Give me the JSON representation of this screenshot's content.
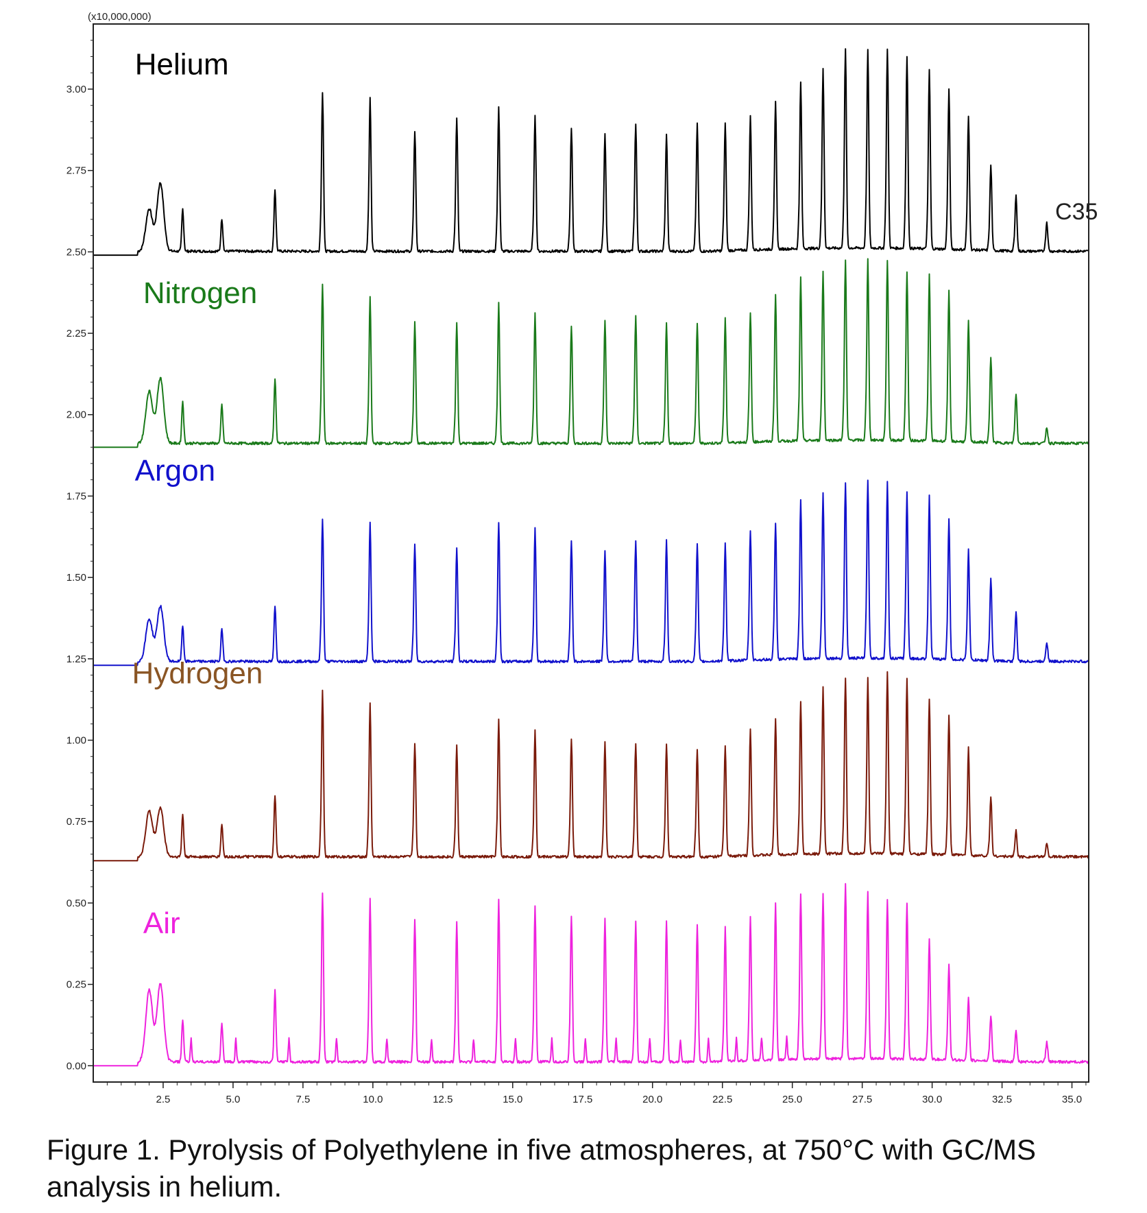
{
  "chart_data": {
    "type": "line",
    "title": "",
    "axis_multiplier_label": "(x10,000,000)",
    "xlabel": "",
    "ylabel": "",
    "xlim": [
      0,
      35.6
    ],
    "ylim": [
      -0.05,
      3.2
    ],
    "x_ticks": [
      "2.5",
      "5.0",
      "7.5",
      "10.0",
      "12.5",
      "15.0",
      "17.5",
      "20.0",
      "22.5",
      "25.0",
      "27.5",
      "30.0",
      "32.5",
      "35.0"
    ],
    "y_ticks": [
      "0.00",
      "0.25",
      "0.50",
      "0.75",
      "1.00",
      "1.25",
      "1.50",
      "1.75",
      "2.00",
      "2.25",
      "2.50",
      "2.75",
      "3.00"
    ],
    "annotation": "C35",
    "peak_retention_times": [
      2.0,
      2.4,
      3.2,
      4.6,
      6.5,
      8.2,
      9.9,
      11.5,
      13.0,
      14.5,
      15.8,
      17.1,
      18.3,
      19.4,
      20.5,
      21.6,
      22.6,
      23.5,
      24.4,
      25.3,
      26.1,
      26.9,
      27.7,
      28.4,
      29.1,
      29.9,
      30.6,
      31.3,
      32.1,
      33.0,
      34.1
    ],
    "series": [
      {
        "name": "Helium",
        "color": "#000000",
        "baseline": 2.49,
        "peak_heights": [
          2.62,
          2.7,
          2.62,
          2.59,
          2.68,
          2.98,
          2.96,
          2.86,
          2.9,
          2.93,
          2.91,
          2.87,
          2.85,
          2.88,
          2.85,
          2.88,
          2.88,
          2.9,
          2.94,
          3.0,
          3.04,
          3.1,
          3.1,
          3.1,
          3.08,
          3.04,
          2.98,
          2.9,
          2.75,
          2.66,
          2.58
        ]
      },
      {
        "name": "Nitrogen",
        "color": "#1a7a1a",
        "baseline": 1.9,
        "peak_heights": [
          2.06,
          2.1,
          2.03,
          2.02,
          2.1,
          2.39,
          2.35,
          2.27,
          2.27,
          2.33,
          2.3,
          2.26,
          2.28,
          2.29,
          2.27,
          2.27,
          2.28,
          2.3,
          2.35,
          2.4,
          2.42,
          2.45,
          2.46,
          2.45,
          2.42,
          2.41,
          2.36,
          2.27,
          2.16,
          2.05,
          1.95
        ]
      },
      {
        "name": "Argon",
        "color": "#1111cc",
        "baseline": 1.23,
        "peak_heights": [
          1.36,
          1.4,
          1.34,
          1.33,
          1.4,
          1.67,
          1.66,
          1.59,
          1.58,
          1.66,
          1.64,
          1.6,
          1.57,
          1.6,
          1.6,
          1.59,
          1.59,
          1.63,
          1.65,
          1.72,
          1.74,
          1.77,
          1.78,
          1.77,
          1.74,
          1.73,
          1.66,
          1.57,
          1.48,
          1.38,
          1.29
        ]
      },
      {
        "name": "Hydrogen",
        "color": "#7a1a0a",
        "label_color": "#8a5524",
        "baseline": 0.63,
        "peak_heights": [
          0.77,
          0.78,
          0.76,
          0.73,
          0.82,
          1.14,
          1.1,
          0.98,
          0.97,
          1.05,
          1.02,
          0.99,
          0.98,
          0.98,
          0.98,
          0.96,
          0.97,
          1.02,
          1.05,
          1.1,
          1.14,
          1.17,
          1.17,
          1.19,
          1.17,
          1.11,
          1.06,
          0.96,
          0.81,
          0.71,
          0.67
        ]
      },
      {
        "name": "Air",
        "color": "#ee22dd",
        "baseline": 0.0,
        "peak_heights": [
          0.22,
          0.24,
          0.13,
          0.12,
          0.22,
          0.52,
          0.5,
          0.44,
          0.43,
          0.5,
          0.48,
          0.45,
          0.44,
          0.43,
          0.43,
          0.42,
          0.41,
          0.44,
          0.48,
          0.51,
          0.51,
          0.54,
          0.51,
          0.49,
          0.48,
          0.37,
          0.29,
          0.19,
          0.14,
          0.1,
          0.06
        ]
      }
    ]
  },
  "caption": "Figure 1. Pyrolysis of Polyethylene in five atmospheres, at 750°C with GC/MS analysis in helium."
}
